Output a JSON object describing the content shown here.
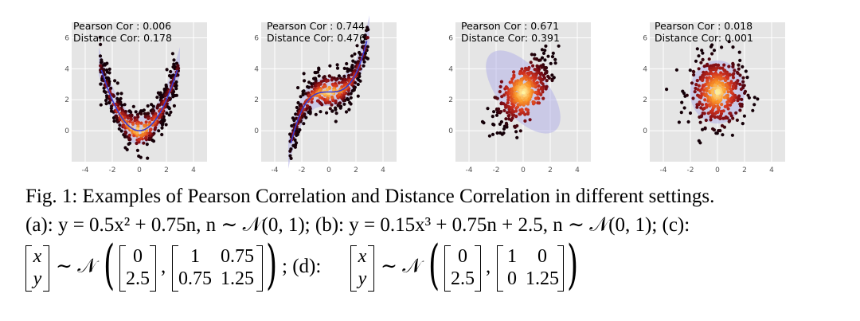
{
  "figure": {
    "panels": [
      {
        "pearson_label": "Pearson Cor : 0.006",
        "distance_label": "Distance Cor: 0.178"
      },
      {
        "pearson_label": "Pearson Cor : 0.744",
        "distance_label": "Distance Cor: 0.476"
      },
      {
        "pearson_label": "Pearson Cor : 0.671",
        "distance_label": "Distance Cor: 0.391"
      },
      {
        "pearson_label": "Pearson Cor : 0.018",
        "distance_label": "Distance Cor: 0.001"
      }
    ],
    "x_ticks": [
      "-4",
      "-2",
      "0",
      "2",
      "4"
    ],
    "y_ticks": [
      "6",
      "4",
      "2",
      "0"
    ]
  },
  "chart_data": [
    {
      "type": "scatter",
      "subtitle": "Pearson Cor : 0.006 / Distance Cor: 0.178",
      "relation": "y = 0.5x^2 + 0.75n",
      "xlim": [
        -5,
        5
      ],
      "ylim": [
        -2,
        7
      ],
      "x_ticks": [
        -4,
        -2,
        0,
        2,
        4
      ],
      "y_ticks": [
        0,
        2,
        4,
        6
      ],
      "pearson": 0.006,
      "distance": 0.178
    },
    {
      "type": "scatter",
      "subtitle": "Pearson Cor : 0.744 / Distance Cor: 0.476",
      "relation": "y = 0.15x^3 + 0.75n + 2.5",
      "xlim": [
        -5,
        5
      ],
      "ylim": [
        -2,
        7
      ],
      "x_ticks": [
        -4,
        -2,
        0,
        2,
        4
      ],
      "y_ticks": [
        0,
        2,
        4,
        6
      ],
      "pearson": 0.744,
      "distance": 0.476
    },
    {
      "type": "scatter",
      "subtitle": "Pearson Cor : 0.671 / Distance Cor: 0.391",
      "relation": "bivariate normal mean [0, 2.5], cov [[1, 0.75], [0.75, 1.25]]",
      "xlim": [
        -5,
        5
      ],
      "ylim": [
        -2,
        7
      ],
      "x_ticks": [
        -4,
        -2,
        0,
        2,
        4
      ],
      "y_ticks": [
        0,
        2,
        4,
        6
      ],
      "pearson": 0.671,
      "distance": 0.391
    },
    {
      "type": "scatter",
      "subtitle": "Pearson Cor : 0.018 / Distance Cor: 0.001",
      "relation": "bivariate normal mean [0, 2.5], cov [[1, 0], [0, 1.25]]",
      "xlim": [
        -5,
        5
      ],
      "ylim": [
        -2,
        7
      ],
      "x_ticks": [
        -4,
        -2,
        0,
        2,
        4
      ],
      "y_ticks": [
        0,
        2,
        4,
        6
      ],
      "pearson": 0.018,
      "distance": 0.001
    }
  ],
  "caption": {
    "line1": "Fig. 1: Examples of Pearson Correlation and Distance Correlation in different settings.",
    "line2": "(a): y = 0.5x² + 0.75n, n ∼ 𝒩(0, 1); (b): y = 0.15x³ + 0.75n + 2.5, n ∼ 𝒩(0, 1); (c):",
    "line3_prefix": "∼ 𝒩",
    "line3_sep": "; (d):",
    "vec_top": "x",
    "vec_bot": "y",
    "mean_c_top": "0",
    "mean_c_bot": "2.5",
    "cov_c_11": "1",
    "cov_c_12": "0.75",
    "cov_c_21": "0.75",
    "cov_c_22": "1.25",
    "mean_d_top": "0",
    "mean_d_bot": "2.5",
    "cov_d_11": "1",
    "cov_d_12": "0",
    "cov_d_21": "0",
    "cov_d_22": "1.25"
  }
}
